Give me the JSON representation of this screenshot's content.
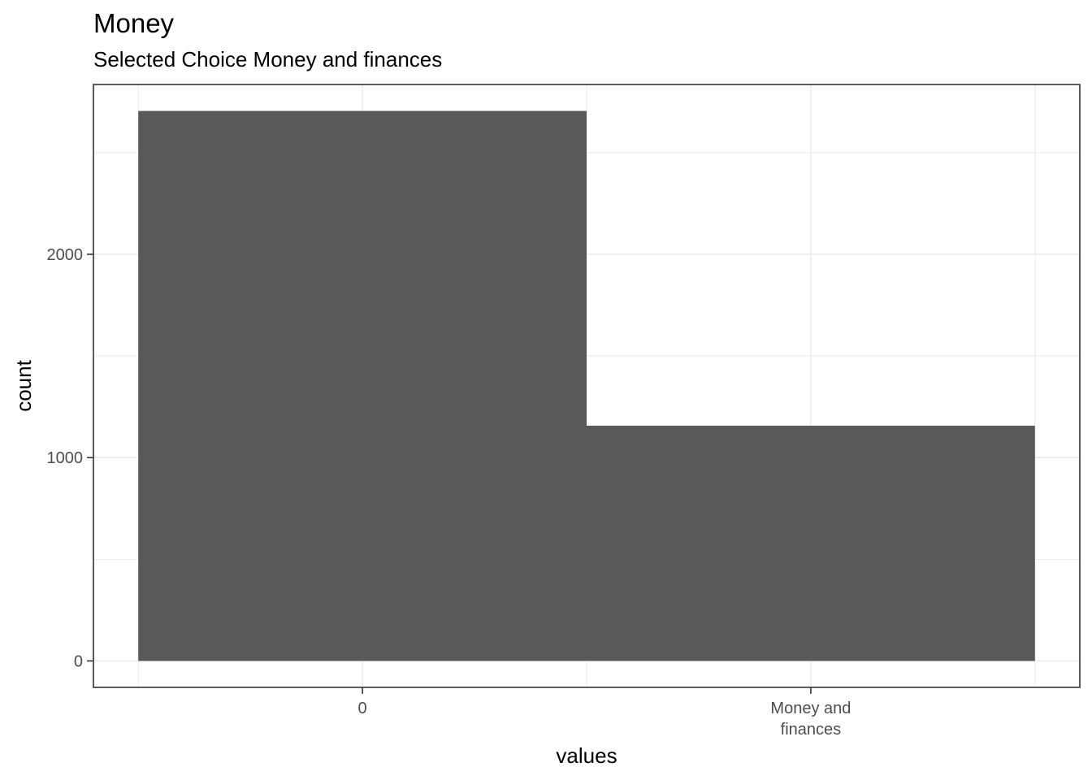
{
  "chart_data": {
    "type": "bar",
    "title": "Money",
    "subtitle": "Selected Choice Money and finances",
    "xlabel": "values",
    "ylabel": "count",
    "categories": [
      "0",
      "Money and\nfinances"
    ],
    "values": [
      2705,
      1157
    ],
    "ylim": [
      -130,
      2835
    ],
    "y_ticks": [
      0,
      1000,
      2000
    ],
    "y_tick_labels": [
      "0",
      "1000",
      "2000"
    ],
    "grid": true,
    "legend": "none",
    "bar_color": "#595959",
    "grid_color": "#ebebeb",
    "panel_border_color": "#333333"
  }
}
